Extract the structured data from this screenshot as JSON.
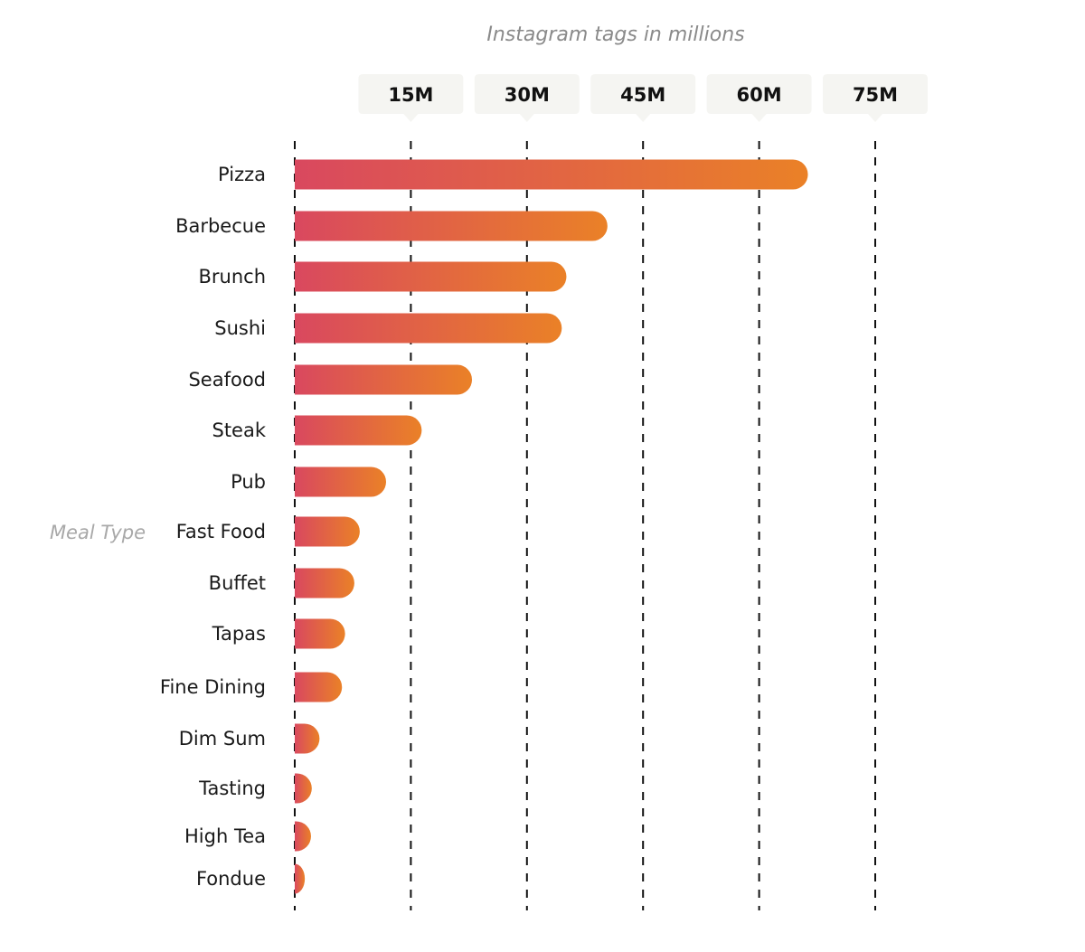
{
  "chart_data": {
    "type": "bar",
    "orientation": "horizontal",
    "xlabel": "Instagram tags in millions",
    "ylabel": "Meal Type",
    "categories": [
      "Pizza",
      "Barbecue",
      "Brunch",
      "Sushi",
      "Seafood",
      "Steak",
      "Pub",
      "Fast Food",
      "Buffet",
      "Tapas",
      "Fine Dining",
      "Dim Sum",
      "Tasting",
      "High Tea",
      "Fondue"
    ],
    "values": [
      66.3,
      40.4,
      35.1,
      34.5,
      22.9,
      16.4,
      11.8,
      8.4,
      7.7,
      6.5,
      6.1,
      3.2,
      2.2,
      2.1,
      1.3
    ],
    "ticks": [
      {
        "value": 15,
        "label": "15M"
      },
      {
        "value": 30,
        "label": "30M"
      },
      {
        "value": 45,
        "label": "45M"
      },
      {
        "value": 60,
        "label": "60M"
      },
      {
        "value": 75,
        "label": "75M"
      }
    ],
    "xlim": [
      0,
      75
    ],
    "grid": true,
    "gradient": {
      "start": "#d9485f",
      "end": "#ea8127"
    }
  }
}
